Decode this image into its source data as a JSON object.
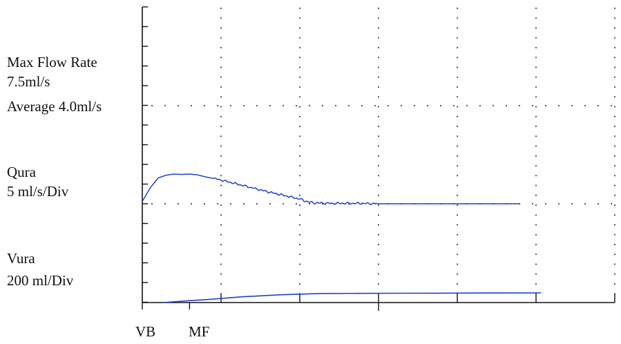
{
  "labels": {
    "max_flow_title": "Max Flow Rate",
    "max_flow_value": "7.5ml/s",
    "average": "Average 4.0ml/s",
    "qura_name": "Qura",
    "qura_scale": "5 ml/s/Div",
    "vura_name": "Vura",
    "vura_scale": "200 ml/Div",
    "vb_marker": "VB",
    "mf_marker": "MF"
  },
  "colors": {
    "trace": "#1f3fd0",
    "axis": "#111111",
    "grid_dots": "#222222"
  },
  "chart_data": {
    "type": "line",
    "title": "",
    "grid": "dotted",
    "series": [
      {
        "name": "Qura",
        "unit": "ml/s",
        "scale_per_div": 5,
        "x": [
          0,
          0.1,
          0.2,
          0.3,
          0.4,
          0.5,
          0.6,
          0.7,
          0.8,
          1.0,
          1.2,
          1.4,
          1.6,
          1.8,
          2.0,
          2.1,
          2.2,
          2.4,
          2.6,
          2.8,
          3.0,
          3.2,
          3.4,
          3.6,
          3.8,
          4.0,
          4.2,
          4.4,
          4.6,
          4.8
        ],
        "values": [
          0.6,
          4.0,
          6.5,
          7.2,
          7.5,
          7.4,
          7.5,
          7.3,
          6.8,
          6.0,
          5.0,
          4.0,
          3.0,
          2.1,
          1.2,
          0.5,
          0.2,
          0.1,
          0.1,
          0.1,
          0.0,
          0.0,
          0.0,
          0.0,
          0.0,
          0.0,
          0.0,
          0.0,
          0.0,
          0.0
        ]
      },
      {
        "name": "Vura",
        "unit": "ml",
        "scale_per_div": 200,
        "x": [
          0,
          0.3,
          0.6,
          1.0,
          1.5,
          2.0,
          2.5,
          3.0,
          3.5,
          4.0,
          4.5,
          4.8
        ],
        "values": [
          0,
          20,
          40,
          70,
          95,
          110,
          112,
          114,
          115,
          116,
          117,
          118
        ]
      }
    ],
    "markers": [
      {
        "label": "VB",
        "x": 0
      },
      {
        "label": "MF",
        "x": 0.6
      }
    ],
    "x_divisions": 6,
    "y_divisions": 15
  }
}
